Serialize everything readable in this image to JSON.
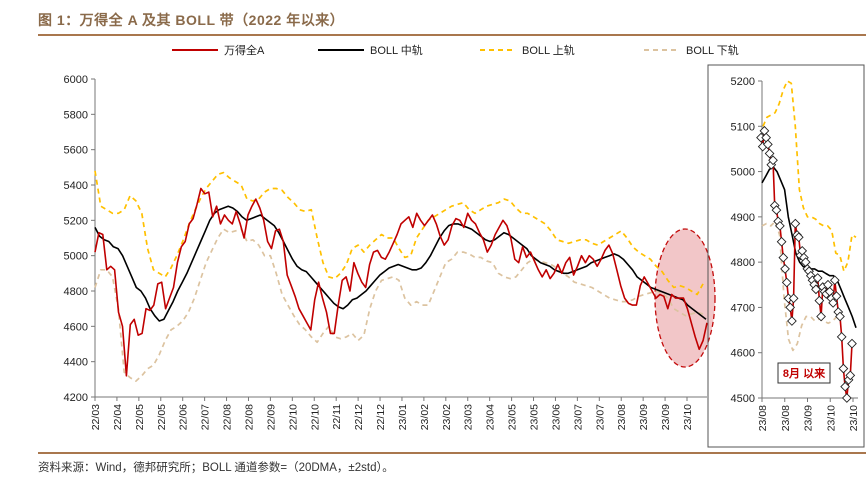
{
  "title": "图 1：万得全 A 及其 BOLL 带（2022 年以来）",
  "source": "资料来源：Wind，德邦研究所；BOLL 通道参数=（20DMA，±2std）。",
  "colors": {
    "index": "#c00000",
    "mid": "#000000",
    "upper": "#ffc000",
    "lower": "#dcc3a0",
    "highlight_fill": "#f2c4c6",
    "highlight_stroke": "#c00000",
    "accent_rule": "#a9774e"
  },
  "legend": [
    {
      "label": "万得全A",
      "key": "index",
      "style": "solid"
    },
    {
      "label": "BOLL 中轨",
      "key": "mid",
      "style": "solid"
    },
    {
      "label": "BOLL 上轨",
      "key": "upper",
      "style": "dashed"
    },
    {
      "label": "BOLL 下轨",
      "key": "lower",
      "style": "dashed"
    }
  ],
  "chart_data": [
    {
      "type": "line",
      "title": "万得全 A 及其 BOLL 带（2022 年以来）",
      "xlabel": "",
      "ylabel": "",
      "ylim": [
        4200,
        6000
      ],
      "yticks": [
        4200,
        4400,
        4600,
        4800,
        5000,
        5200,
        5400,
        5600,
        5800,
        6000
      ],
      "xticks": [
        "22/03",
        "22/04",
        "22/05",
        "22/05",
        "22/06",
        "22/07",
        "22/08",
        "22/08",
        "22/09",
        "22/10",
        "22/10",
        "22/11",
        "22/12",
        "22/12",
        "23/01",
        "23/02",
        "23/02",
        "23/03",
        "23/04",
        "23/05",
        "23/05",
        "23/06",
        "23/07",
        "23/07",
        "23/08",
        "23/09",
        "23/09",
        "23/10"
      ],
      "annotation": "highlighted ellipse over 2023/08 onward",
      "series": [
        {
          "name": "万得全A",
          "key": "index",
          "values": [
            5020,
            5130,
            5120,
            4920,
            4940,
            4920,
            4680,
            4600,
            4320,
            4610,
            4640,
            4550,
            4560,
            4700,
            4690,
            4720,
            4840,
            4850,
            4700,
            4760,
            4820,
            4960,
            5050,
            5080,
            5180,
            5210,
            5290,
            5380,
            5350,
            5360,
            5220,
            5280,
            5180,
            5230,
            5200,
            5180,
            5250,
            5180,
            5100,
            5230,
            5280,
            5320,
            5270,
            5200,
            5080,
            5040,
            5140,
            5150,
            5080,
            4890,
            4830,
            4770,
            4700,
            4660,
            4620,
            4580,
            4750,
            4850,
            4760,
            4680,
            4560,
            4560,
            4720,
            4860,
            4880,
            4800,
            4960,
            4900,
            4850,
            4820,
            4950,
            5020,
            5030,
            4990,
            4980,
            5020,
            5070,
            5120,
            5180,
            5200,
            5220,
            5160,
            5240,
            5200,
            5170,
            5200,
            5230,
            5180,
            5110,
            5060,
            5090,
            5170,
            5210,
            5200,
            5160,
            5240,
            5200,
            5180,
            5130,
            5090,
            5020,
            5060,
            5120,
            5160,
            5200,
            5170,
            5100,
            4980,
            4960,
            5050,
            4990,
            5020,
            4970,
            4920,
            4880,
            4920,
            4870,
            4900,
            4950,
            4900,
            4960,
            4990,
            4890,
            4940,
            5000,
            4960,
            5000,
            4980,
            4940,
            4980,
            5030,
            5060,
            5010,
            4920,
            4830,
            4760,
            4730,
            4720,
            4720,
            4830,
            4880,
            4840,
            4800,
            4760,
            4780,
            4770,
            4700,
            4780,
            4760,
            4760,
            4760,
            4700,
            4620,
            4540,
            4470,
            4520,
            4620
          ]
        },
        {
          "name": "BOLL 中轨",
          "key": "mid",
          "values": [
            5160,
            5110,
            5090,
            5080,
            5050,
            5040,
            5000,
            4940,
            4880,
            4820,
            4800,
            4760,
            4700,
            4660,
            4630,
            4640,
            4690,
            4740,
            4800,
            4850,
            4900,
            4960,
            5020,
            5080,
            5140,
            5200,
            5240,
            5260,
            5270,
            5280,
            5270,
            5250,
            5220,
            5200,
            5210,
            5220,
            5230,
            5210,
            5190,
            5170,
            5130,
            5080,
            5030,
            4980,
            4940,
            4920,
            4910,
            4880,
            4850,
            4820,
            4790,
            4760,
            4730,
            4710,
            4700,
            4720,
            4750,
            4760,
            4780,
            4800,
            4830,
            4860,
            4890,
            4910,
            4930,
            4940,
            4950,
            4940,
            4930,
            4920,
            4920,
            4930,
            4960,
            5000,
            5050,
            5100,
            5140,
            5170,
            5180,
            5180,
            5170,
            5160,
            5150,
            5130,
            5110,
            5090,
            5080,
            5090,
            5110,
            5130,
            5120,
            5100,
            5080,
            5060,
            5040,
            5000,
            4980,
            4960,
            4950,
            4940,
            4920,
            4910,
            4900,
            4900,
            4910,
            4920,
            4930,
            4940,
            4960,
            4970,
            4980,
            4990,
            5000,
            5010,
            5000,
            4980,
            4950,
            4920,
            4880,
            4860,
            4840,
            4820,
            4810,
            4800,
            4790,
            4780,
            4770,
            4760,
            4750,
            4720,
            4700,
            4680,
            4660,
            4640
          ]
        },
        {
          "name": "BOLL 上轨",
          "key": "upper",
          "values": [
            5480,
            5280,
            5260,
            5240,
            5240,
            5260,
            5340,
            5310,
            5240,
            5040,
            4920,
            4900,
            4880,
            4930,
            5000,
            5080,
            5170,
            5250,
            5320,
            5380,
            5420,
            5460,
            5470,
            5440,
            5420,
            5400,
            5320,
            5310,
            5320,
            5360,
            5380,
            5380,
            5370,
            5330,
            5300,
            5260,
            5250,
            5260,
            5100,
            4960,
            4880,
            4870,
            4900,
            4950,
            5040,
            5060,
            5020,
            5060,
            5090,
            5120,
            5100,
            5100,
            5040,
            4990,
            5000,
            5100,
            5150,
            5200,
            5220,
            5240,
            5260,
            5280,
            5290,
            5300,
            5260,
            5240,
            5260,
            5280,
            5290,
            5300,
            5320,
            5310,
            5270,
            5240,
            5240,
            5220,
            5200,
            5180,
            5140,
            5090,
            5080,
            5070,
            5080,
            5090,
            5090,
            5070,
            5060,
            5080,
            5100,
            5120,
            5140,
            5100,
            5050,
            5020,
            5000,
            4980,
            4940,
            4910,
            4860,
            4820,
            4830,
            4820,
            4800,
            4780,
            4840
          ]
        },
        {
          "name": "BOLL 下轨",
          "key": "lower",
          "values": [
            4820,
            4920,
            4920,
            4880,
            4700,
            4340,
            4310,
            4290,
            4320,
            4360,
            4380,
            4440,
            4520,
            4580,
            4600,
            4630,
            4680,
            4760,
            4860,
            4960,
            5030,
            5100,
            5150,
            5130,
            5140,
            5150,
            5080,
            5090,
            5060,
            5000,
            5000,
            4900,
            4780,
            4720,
            4660,
            4610,
            4580,
            4540,
            4510,
            4560,
            4600,
            4540,
            4530,
            4540,
            4560,
            4520,
            4550,
            4700,
            4800,
            4860,
            4870,
            4880,
            4860,
            4760,
            4720,
            4740,
            4720,
            4720,
            4800,
            4880,
            4960,
            4980,
            5020,
            5020,
            5010,
            4990,
            4990,
            4970,
            4960,
            4900,
            4880,
            4870,
            4880,
            4920,
            4960,
            4980,
            4970,
            4960,
            4950,
            4930,
            4900,
            4880,
            4850,
            4840,
            4830,
            4820,
            4800,
            4780,
            4760,
            4750,
            4740,
            4740,
            4750,
            4770,
            4780,
            4790,
            4800,
            4790,
            4760,
            4700,
            4680,
            4660,
            4670,
            4680,
            4670
          ]
        }
      ]
    },
    {
      "type": "line",
      "title": "8月以来",
      "ylim": [
        4500,
        5200
      ],
      "yticks": [
        4500,
        4600,
        4700,
        4800,
        4900,
        5000,
        5100,
        5200
      ],
      "xticks": [
        "23/08",
        "23/08",
        "23/09",
        "23/10",
        "23/10"
      ],
      "series": [
        {
          "name": "万得全A",
          "key": "index",
          "markers": true,
          "values": [
            5075,
            5055,
            5090,
            5075,
            5060,
            5040,
            5015,
            5025,
            4925,
            4915,
            4890,
            4880,
            4845,
            4810,
            4785,
            4755,
            4720,
            4700,
            4670,
            4720,
            4885,
            4860,
            4855,
            4815,
            4825,
            4810,
            4800,
            4785,
            4780,
            4770,
            4760,
            4750,
            4740,
            4765,
            4715,
            4680,
            4745,
            4735,
            4730,
            4750,
            4735,
            4720,
            4710,
            4760,
            4725,
            4690,
            4680,
            4635,
            4565,
            4525,
            4495,
            4540,
            4550,
            4620
          ]
        },
        {
          "name": "BOLL 中轨",
          "key": "mid",
          "values": [
            4975,
            4990,
            5005,
            5010,
            5000,
            4980,
            4960,
            4900,
            4860,
            4820,
            4800,
            4790,
            4790,
            4785,
            4785,
            4780,
            4780,
            4775,
            4770,
            4770,
            4760,
            4740,
            4720,
            4700,
            4680,
            4655
          ]
        },
        {
          "name": "BOLL 上轨",
          "key": "upper",
          "values": [
            5100,
            5120,
            5125,
            5130,
            5150,
            5180,
            5210,
            5195,
            5100,
            4960,
            4920,
            4900,
            4900,
            4895,
            4885,
            4880,
            4880,
            4870,
            4820,
            4815,
            4780,
            4800,
            4860,
            4855
          ]
        },
        {
          "name": "BOLL 下轨",
          "key": "lower",
          "values": [
            4880,
            4885,
            4880,
            4890,
            4860,
            4720,
            4630,
            4605,
            4620,
            4660,
            4680,
            4680,
            4670,
            4675,
            4670,
            4665,
            4670,
            4680
          ]
        }
      ],
      "label": "8月 以来"
    }
  ]
}
